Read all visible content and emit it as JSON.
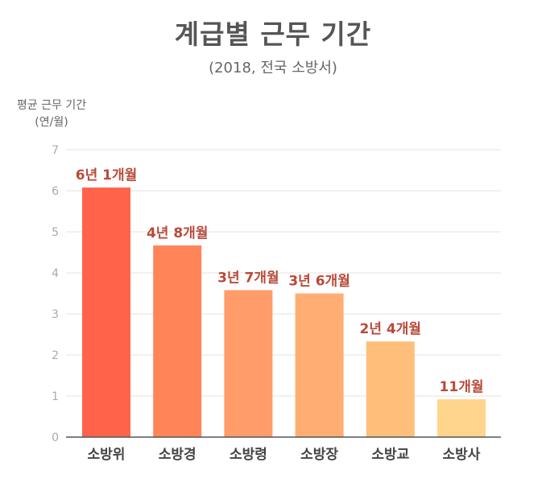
{
  "header": {
    "title": "계급별 근무 기간",
    "subtitle": "(2018, 전국 소방서)"
  },
  "chart_data": {
    "type": "bar",
    "title": "계급별 근무 기간",
    "subtitle": "(2018, 전국 소방서)",
    "ylabel_line1": "평균 근무 기간",
    "ylabel_line2": "(연/월)",
    "xlabel": "",
    "ylim": [
      0,
      7
    ],
    "yticks": [
      "0",
      "1",
      "2",
      "3",
      "4",
      "5",
      "6",
      "7"
    ],
    "grid": true,
    "categories": [
      "소방위",
      "소방경",
      "소방령",
      "소방장",
      "소방교",
      "소방사"
    ],
    "values": [
      6.08,
      4.67,
      3.58,
      3.5,
      2.33,
      0.92
    ],
    "data_labels": [
      "6년 1개월",
      "4년 8개월",
      "3년 7개월",
      "3년 6개월",
      "2년 4개월",
      "11개월"
    ],
    "colors": [
      "#ff644a",
      "#ff8558",
      "#ff9c6a",
      "#ffad72",
      "#ffbe7a",
      "#ffd48c"
    ]
  }
}
